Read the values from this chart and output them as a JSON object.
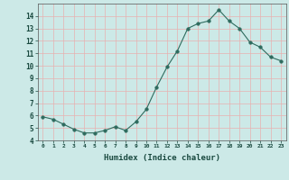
{
  "x": [
    0,
    1,
    2,
    3,
    4,
    5,
    6,
    7,
    8,
    9,
    10,
    11,
    12,
    13,
    14,
    15,
    16,
    17,
    18,
    19,
    20,
    21,
    22,
    23
  ],
  "y": [
    5.9,
    5.7,
    5.3,
    4.9,
    4.6,
    4.6,
    4.8,
    5.1,
    4.8,
    5.5,
    6.5,
    8.3,
    9.9,
    11.2,
    13.0,
    13.4,
    13.6,
    14.5,
    13.6,
    13.0,
    11.9,
    11.5,
    10.7,
    10.4
  ],
  "xlabel": "Humidex (Indice chaleur)",
  "xlim": [
    -0.5,
    23.5
  ],
  "ylim": [
    4,
    15.0
  ],
  "yticks": [
    4,
    5,
    6,
    7,
    8,
    9,
    10,
    11,
    12,
    13,
    14
  ],
  "xtick_labels": [
    "0",
    "1",
    "2",
    "3",
    "4",
    "5",
    "6",
    "7",
    "8",
    "9",
    "10",
    "11",
    "12",
    "13",
    "14",
    "15",
    "16",
    "17",
    "18",
    "19",
    "20",
    "21",
    "22",
    "23"
  ],
  "line_color": "#2e6b5e",
  "marker_size": 2.5,
  "bg_color": "#cce9e7",
  "grid_color": "#b8d8d6",
  "grid_color_red": "#e8b0b0",
  "fig_bg": "#cce9e7"
}
